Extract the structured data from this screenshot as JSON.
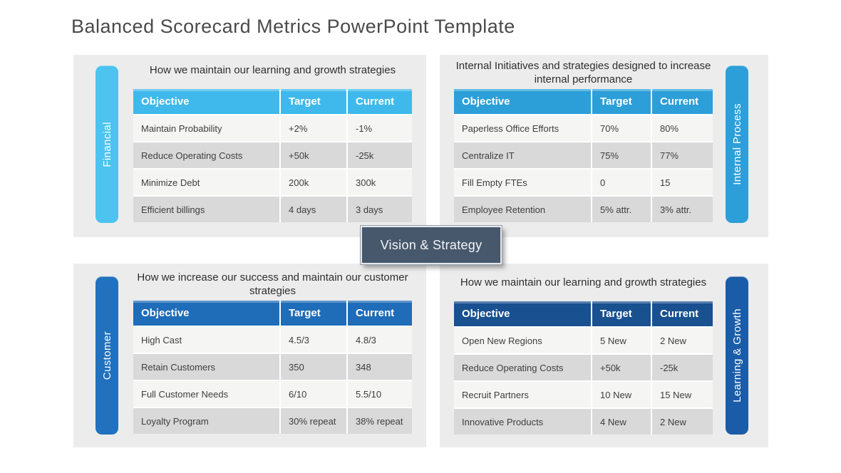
{
  "title": "Balanced Scorecard Metrics PowerPoint Template",
  "center_box": {
    "label": "Vision & Strategy",
    "bg": "#47586d"
  },
  "quadrants": [
    {
      "id": "financial",
      "tab": "Financial",
      "heading": "How we maintain our learning and growth strategies",
      "colors": {
        "pill": "#4dc3f0",
        "header": "#3fb9eb"
      },
      "columns": [
        "Objective",
        "Target",
        "Current"
      ],
      "rows": [
        [
          "Maintain Probability",
          "+2%",
          "-1%"
        ],
        [
          "Reduce Operating Costs",
          "+50k",
          "-25k"
        ],
        [
          "Minimize Debt",
          "200k",
          "300k"
        ],
        [
          "Efficient billings",
          "4 days",
          "3 days"
        ]
      ]
    },
    {
      "id": "internal-process",
      "tab": "Internal Process",
      "heading": "Internal Initiatives and strategies designed to increase internal performance",
      "colors": {
        "pill": "#2c9fd9",
        "header": "#2c9fd9"
      },
      "columns": [
        "Objective",
        "Target",
        "Current"
      ],
      "rows": [
        [
          "Paperless Office Efforts",
          "70%",
          "80%"
        ],
        [
          "Centralize IT",
          "75%",
          "77%"
        ],
        [
          "Fill Empty FTEs",
          "0",
          "15"
        ],
        [
          "Employee Retention",
          "5% attr.",
          "3% attr."
        ]
      ]
    },
    {
      "id": "customer",
      "tab": "Customer",
      "heading": "How we increase our success and maintain our customer strategies",
      "colors": {
        "pill": "#2171be",
        "header": "#1f6cb8"
      },
      "columns": [
        "Objective",
        "Target",
        "Current"
      ],
      "rows": [
        [
          "High Cast",
          "4.5/3",
          "4.8/3"
        ],
        [
          "Retain Customers",
          "350",
          "348"
        ],
        [
          "Full Customer Needs",
          "6/10",
          "5.5/10"
        ],
        [
          "Loyalty Program",
          "30% repeat",
          "38% repeat"
        ]
      ]
    },
    {
      "id": "learning-growth",
      "tab": "Learning & Growth",
      "heading": "How we maintain our learning and growth strategies",
      "colors": {
        "pill": "#1a5ca8",
        "header": "#19508f"
      },
      "columns": [
        "Objective",
        "Target",
        "Current"
      ],
      "rows": [
        [
          "Open New Regions",
          "5 New",
          "2 New"
        ],
        [
          "Reduce Operating Costs",
          "+50k",
          "-25k"
        ],
        [
          "Recruit Partners",
          "10 New",
          "15 New"
        ],
        [
          "Innovative Products",
          "4 New",
          "2 New"
        ]
      ]
    }
  ]
}
